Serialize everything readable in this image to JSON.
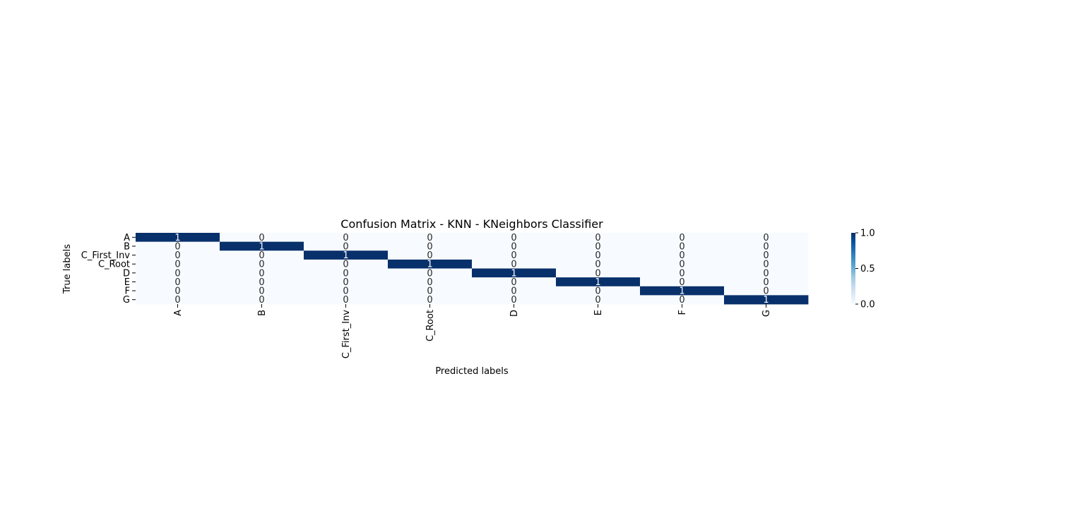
{
  "chart_data": {
    "type": "heatmap",
    "title": "Confusion Matrix - KNN - KNeighbors Classifier",
    "xlabel": "Predicted labels",
    "ylabel": "True labels",
    "x_categories": [
      "A",
      "B",
      "C_First_Inv",
      "C_Root",
      "D",
      "E",
      "F",
      "G"
    ],
    "y_categories": [
      "A",
      "B",
      "C_First_Inv",
      "C_Root",
      "D",
      "E",
      "F",
      "G"
    ],
    "values": [
      [
        1,
        0,
        0,
        0,
        0,
        0,
        0,
        0
      ],
      [
        0,
        1,
        0,
        0,
        0,
        0,
        0,
        0
      ],
      [
        0,
        0,
        1,
        0,
        0,
        0,
        0,
        0
      ],
      [
        0,
        0,
        0,
        1,
        0,
        0,
        0,
        0
      ],
      [
        0,
        0,
        0,
        0,
        1,
        0,
        0,
        0
      ],
      [
        0,
        0,
        0,
        0,
        0,
        1,
        0,
        0
      ],
      [
        0,
        0,
        0,
        0,
        0,
        0,
        1,
        0
      ],
      [
        0,
        0,
        0,
        0,
        0,
        0,
        0,
        1
      ]
    ],
    "colormap": "Blues",
    "color_low": "#f7fbff",
    "color_high": "#08306b",
    "colorbar": {
      "range": [
        0.0,
        1.0
      ],
      "ticks": [
        {
          "value": 0.0,
          "label": "0.0"
        },
        {
          "value": 0.5,
          "label": "0.5"
        },
        {
          "value": 1.0,
          "label": "1.0"
        }
      ]
    }
  }
}
